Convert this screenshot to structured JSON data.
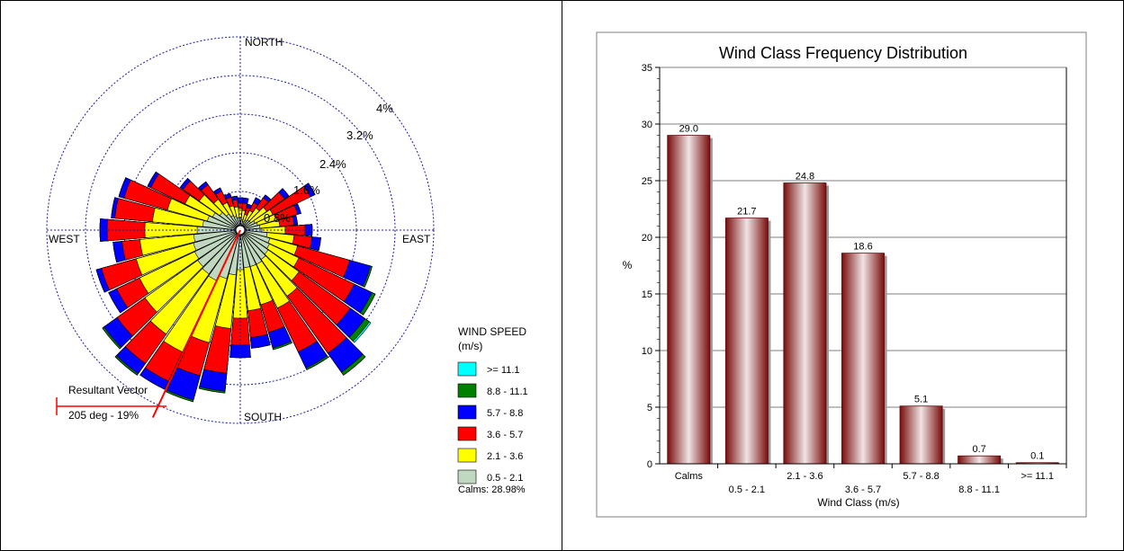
{
  "windrose": {
    "directions": {
      "north": "NORTH",
      "south": "SOUTH",
      "east": "EAST",
      "west": "WEST"
    },
    "ring_labels": [
      "0.8%",
      "1.6%",
      "2.4%",
      "3.2%",
      "4%"
    ],
    "legend_title": [
      "WIND SPEED",
      "(m/s)"
    ],
    "classes": [
      {
        "label": ">= 11.1",
        "color": "#00ffff"
      },
      {
        "label": "8.8 - 11.1",
        "color": "#008000"
      },
      {
        "label": "5.7 -  8.8",
        "color": "#0000ff"
      },
      {
        "label": "3.6 -  5.7",
        "color": "#ff0000"
      },
      {
        "label": "2.1 -  3.6",
        "color": "#ffff00"
      },
      {
        "label": "0.5 -  2.1",
        "color": "#c0d8c0"
      }
    ],
    "calms_text": "Calms: 28.98%",
    "resultant_title": "Resultant Vector",
    "resultant_value": "205 deg - 19%",
    "resultant_direction_deg": 205
  },
  "chart_data": {
    "type": "bar",
    "title": "Wind Class Frequency Distribution",
    "xlabel": "Wind Class (m/s)",
    "ylabel": "%",
    "ylim": [
      0,
      35
    ],
    "yticks": [
      0,
      5,
      10,
      15,
      20,
      25,
      30,
      35
    ],
    "categories": [
      "Calms",
      "0.5 -  2.1",
      "2.1 -  3.6",
      "3.6 -  5.7",
      "5.7 -  8.8",
      "8.8 - 11.1",
      ">= 11.1"
    ],
    "values": [
      29.0,
      21.7,
      24.8,
      18.6,
      5.1,
      0.7,
      0.1
    ],
    "data_labels": [
      "29.0",
      "21.7",
      "24.8",
      "18.6",
      "5.1",
      "0.7",
      "0.1"
    ],
    "bar_color": "#8b1a1a",
    "grid": true
  }
}
